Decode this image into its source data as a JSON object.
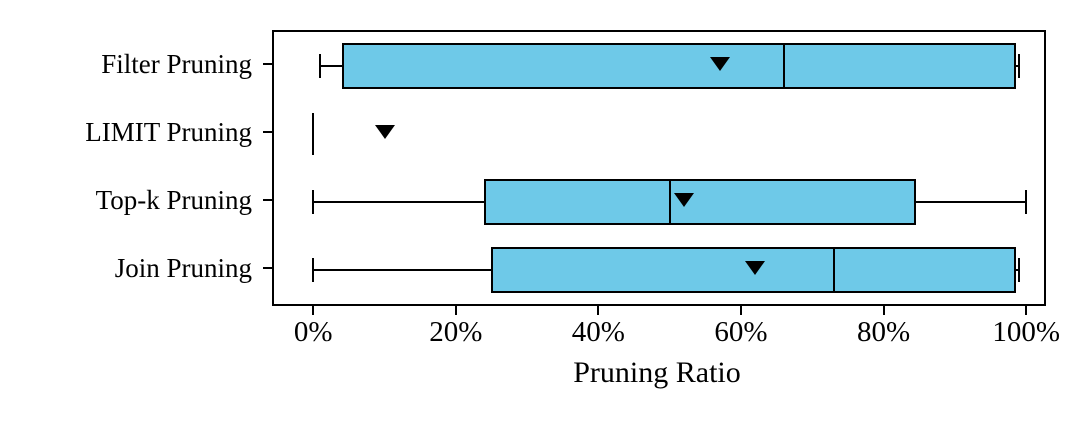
{
  "figure": {
    "background": "#ffffff"
  },
  "chart_data": {
    "type": "boxplot",
    "orientation": "horizontal",
    "title": "",
    "xlabel": "Pruning Ratio",
    "ylabel": "",
    "xlim": [
      0,
      100
    ],
    "grid": false,
    "legend": null,
    "mean_marker_shape": "triangle-down",
    "x_ticks": [
      {
        "value": 0,
        "label": "0%"
      },
      {
        "value": 20,
        "label": "20%"
      },
      {
        "value": 40,
        "label": "40%"
      },
      {
        "value": 60,
        "label": "60%"
      },
      {
        "value": 80,
        "label": "80%"
      },
      {
        "value": 100,
        "label": "100%"
      }
    ],
    "categories": [
      "Filter Pruning",
      "LIMIT Pruning",
      "Top-k Pruning",
      "Join Pruning"
    ],
    "series": [
      {
        "name": "Filter Pruning",
        "whisker_min": 1,
        "q1": 4,
        "median": 66,
        "q3": 98,
        "whisker_max": 99,
        "mean": 57
      },
      {
        "name": "LIMIT Pruning",
        "whisker_min": 0,
        "q1": 0,
        "median": 0,
        "q3": 0,
        "whisker_max": 0,
        "mean": 10
      },
      {
        "name": "Top-k Pruning",
        "whisker_min": 0,
        "q1": 24,
        "median": 50,
        "q3": 84,
        "whisker_max": 100,
        "mean": 52
      },
      {
        "name": "Join Pruning",
        "whisker_min": 0,
        "q1": 25,
        "median": 73,
        "q3": 98,
        "whisker_max": 99,
        "mean": 62
      }
    ],
    "colors": {
      "box_fill": "#6EC9E8",
      "box_edge": "#000000",
      "median": "#000000",
      "whisker": "#000000",
      "mean_marker": "#000000"
    }
  }
}
